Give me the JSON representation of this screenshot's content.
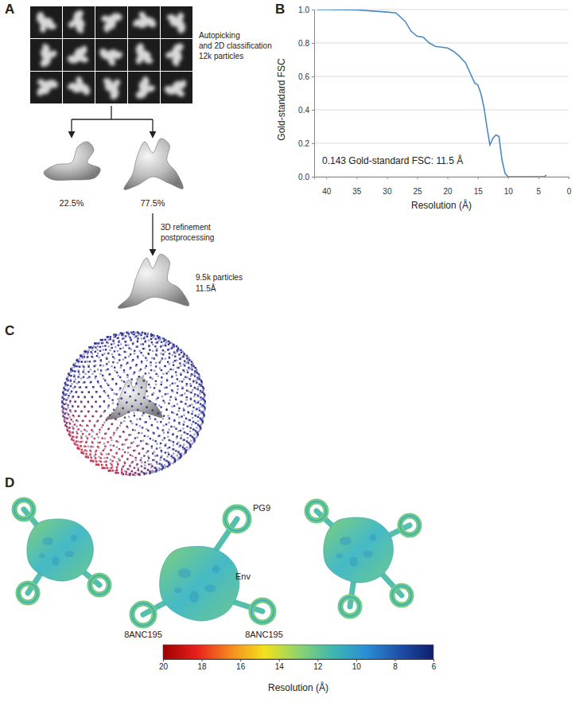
{
  "figure": {
    "panel_labels": [
      "A",
      "B",
      "C",
      "D"
    ],
    "panel_a": {
      "classification_note": [
        "Autopicking",
        "and 2D classification",
        "12k particles"
      ],
      "class_fractions": [
        "22.5%",
        "77.5%"
      ],
      "refinement_note": [
        "3D refinement",
        "postprocessing"
      ],
      "final_note": [
        "9.5k particles",
        "11.5Å"
      ]
    },
    "panel_d": {
      "labels": [
        "PG9",
        "Env",
        "8ANC195",
        "8ANC195"
      ]
    }
  },
  "chart_data": [
    {
      "type": "line",
      "x_label": "Resolution (Å)",
      "y_label": "Gold-standard FSC",
      "annotations": [
        "0.143 Gold-standard FSC: 11.5 Å"
      ],
      "x": [
        41.5,
        40,
        35,
        30,
        28.5,
        27,
        26,
        25,
        24,
        23,
        22,
        21,
        20,
        19,
        18,
        17,
        16,
        15.5,
        15,
        14.5,
        14,
        13.5,
        13,
        12.5,
        12,
        11.5,
        11,
        10.5,
        10,
        8,
        6,
        5,
        4,
        3.7
      ],
      "values": [
        1.0,
        1.0,
        0.998,
        0.985,
        0.98,
        0.93,
        0.87,
        0.84,
        0.835,
        0.8,
        0.78,
        0.775,
        0.77,
        0.75,
        0.72,
        0.68,
        0.6,
        0.56,
        0.55,
        0.5,
        0.42,
        0.3,
        0.19,
        0.23,
        0.25,
        0.24,
        0.1,
        0.02,
        0.0,
        0.0,
        0.0,
        0.0,
        0.0,
        0.01
      ],
      "color": "#4a8ac4",
      "xlim": [
        42,
        0
      ],
      "ylim": [
        0,
        1
      ],
      "xticks": [
        40,
        35,
        30,
        25,
        20,
        15,
        10,
        5,
        0
      ],
      "yticks": [
        {
          "value": 0,
          "label": "0.0"
        },
        {
          "value": 0.2,
          "label": "0.2"
        },
        {
          "value": 0.4,
          "label": "0.4"
        },
        {
          "value": 0.6,
          "label": "0.6"
        },
        {
          "value": 0.8,
          "label": "0.8"
        },
        {
          "value": 1,
          "label": "1.0"
        }
      ],
      "grid": true
    },
    {
      "type": "colorbar",
      "x_label": "Resolution (Å)",
      "xlim": [
        20,
        6
      ],
      "xticks": [
        20,
        18,
        16,
        14,
        12,
        10,
        8,
        6
      ],
      "colors": [
        "#9e0000",
        "#e8201c",
        "#f58a1f",
        "#f4e21c",
        "#8fd36b",
        "#3fb8b0",
        "#2a8fd6",
        "#1f4fa8",
        "#0d1e6b"
      ]
    }
  ]
}
